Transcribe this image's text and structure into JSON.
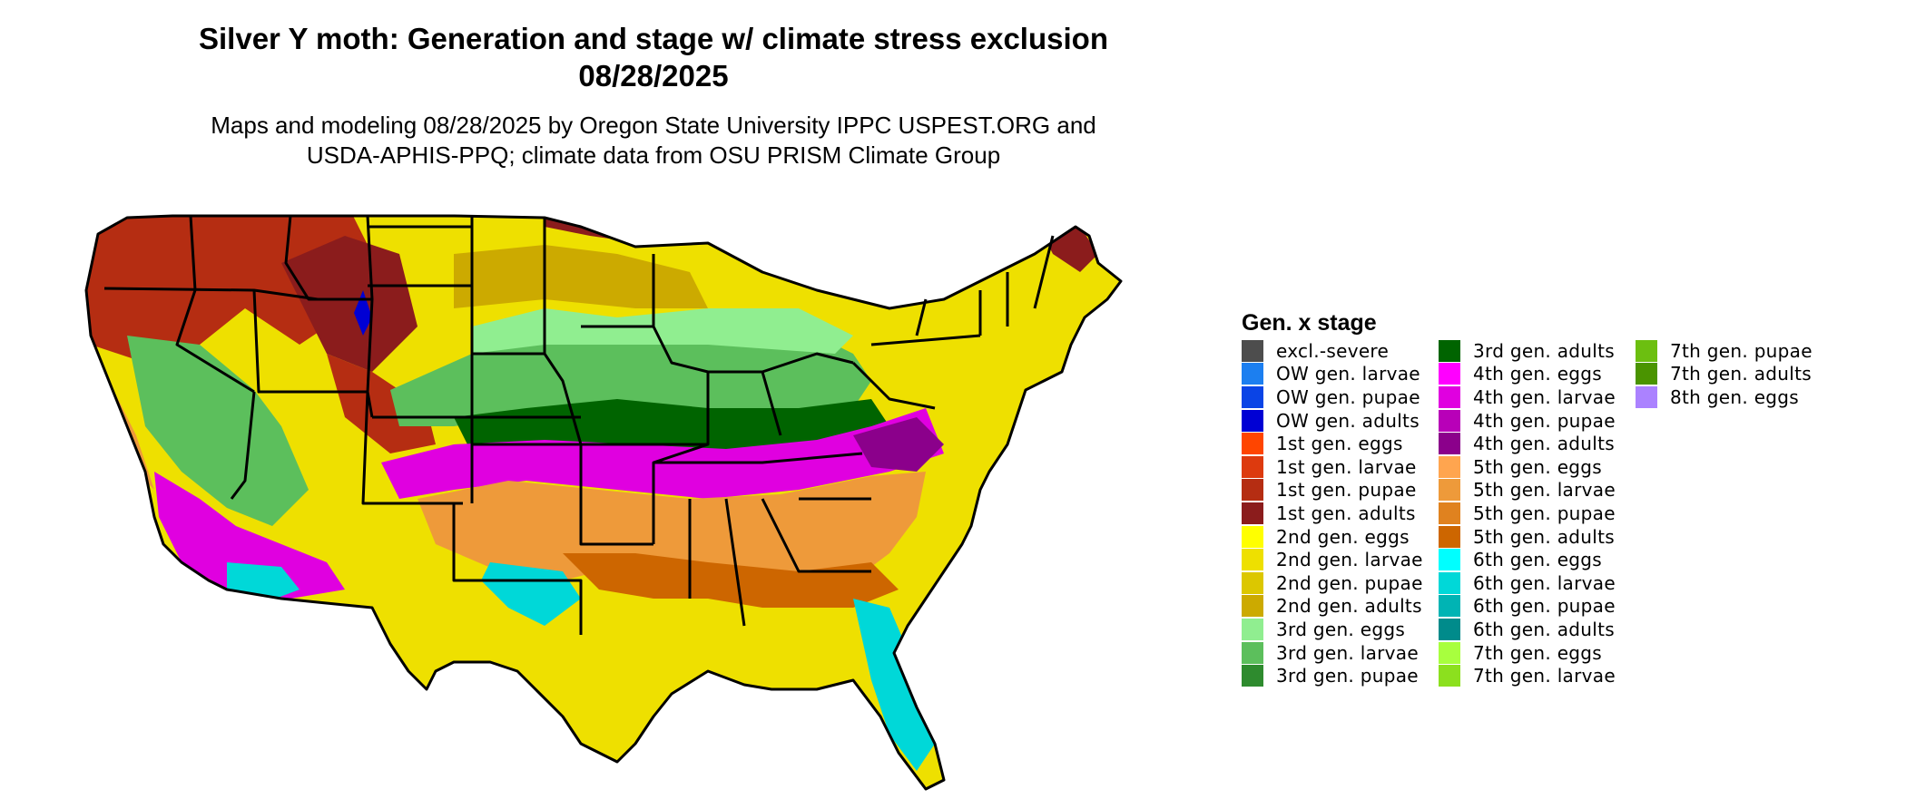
{
  "title": {
    "line1": "Silver Y moth: Generation and stage w/ climate stress exclusion",
    "line2": "08/28/2025"
  },
  "subtitle": {
    "line1": "Maps and modeling 08/28/2025 by Oregon State University IPPC USPEST.ORG and",
    "line2": "USDA-APHIS-PPQ; climate data from OSU PRISM Climate Group"
  },
  "legend": {
    "title": "Gen. x stage",
    "columns": [
      [
        {
          "label": "excl.-severe",
          "color": "#4d4d4d"
        },
        {
          "label": "OW gen. larvae",
          "color": "#1c7ff0"
        },
        {
          "label": "OW gen. pupae",
          "color": "#0a44e6"
        },
        {
          "label": "OW gen. adults",
          "color": "#0000d4"
        },
        {
          "label": "1st gen. eggs",
          "color": "#ff4500"
        },
        {
          "label": "1st gen. larvae",
          "color": "#dd3a0e"
        },
        {
          "label": "1st gen. pupae",
          "color": "#b52d12"
        },
        {
          "label": "1st gen. adults",
          "color": "#8b1c1c"
        },
        {
          "label": "2nd gen. eggs",
          "color": "#ffff00"
        },
        {
          "label": "2nd gen. larvae",
          "color": "#eee000"
        },
        {
          "label": "2nd gen. pupae",
          "color": "#dcc700"
        },
        {
          "label": "2nd gen. adults",
          "color": "#ccaa00"
        },
        {
          "label": "3rd gen. eggs",
          "color": "#90ee90"
        },
        {
          "label": "3rd gen. larvae",
          "color": "#5cbf5c"
        },
        {
          "label": "3rd gen. pupae",
          "color": "#2e8b2e"
        }
      ],
      [
        {
          "label": "3rd gen. adults",
          "color": "#006400"
        },
        {
          "label": "4th gen. eggs",
          "color": "#ff00ff"
        },
        {
          "label": "4th gen. larvae",
          "color": "#e000e0"
        },
        {
          "label": "4th gen. pupae",
          "color": "#b800b8"
        },
        {
          "label": "4th gen. adults",
          "color": "#8b008b"
        },
        {
          "label": "5th gen. eggs",
          "color": "#ffa54f"
        },
        {
          "label": "5th gen. larvae",
          "color": "#ee9a3a"
        },
        {
          "label": "5th gen. pupae",
          "color": "#e0821f"
        },
        {
          "label": "5th gen. adults",
          "color": "#cd6600"
        },
        {
          "label": "6th gen. eggs",
          "color": "#00ffff"
        },
        {
          "label": "6th gen. larvae",
          "color": "#00d8d8"
        },
        {
          "label": "6th gen. pupae",
          "color": "#00b4b4"
        },
        {
          "label": "6th gen. adults",
          "color": "#008b8b"
        },
        {
          "label": "7th gen. eggs",
          "color": "#a8ff3e"
        },
        {
          "label": "7th gen. larvae",
          "color": "#8ce01e"
        }
      ],
      [
        {
          "label": "7th gen. pupae",
          "color": "#6cbf10"
        },
        {
          "label": "7th gen. adults",
          "color": "#4a9400"
        },
        {
          "label": "8th gen. eggs",
          "color": "#ab82ff"
        }
      ]
    ]
  }
}
